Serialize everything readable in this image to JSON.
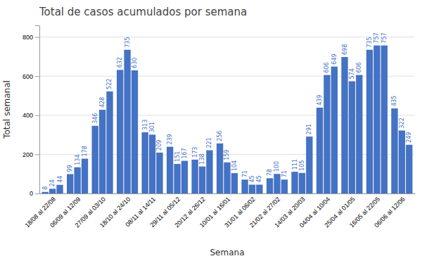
{
  "chart_data": {
    "type": "bar",
    "title": "Total de casos acumulados por semana",
    "xlabel": "Semana",
    "ylabel": "Total semanal",
    "categories": [
      "18/08 al 22/08",
      "06/09 al 12/09",
      "27/09 al 03/10",
      "18/10 al 24/10",
      "08/11 al 14/11",
      "29/11 al 05/12",
      "20/12 al 26/12",
      "10/01 al 16/01",
      "31/01 al 06/02",
      "21/02 al 27/02",
      "14/03 al 20/03",
      "04/04 al 10/04",
      "25/04 al 01/05",
      "16/05 al 22/05",
      "06/06 al 12/06"
    ],
    "values": [
      [
        8,
        24,
        44
      ],
      [
        99,
        134,
        178
      ],
      [
        346,
        428,
        522
      ],
      [
        632,
        735,
        630
      ],
      [
        313,
        301,
        209
      ],
      [
        239,
        151,
        167
      ],
      [
        173,
        138,
        221
      ],
      [
        256,
        159,
        104
      ],
      [
        71,
        45,
        45
      ],
      [
        78,
        100,
        71
      ],
      [
        111,
        105,
        291
      ],
      [
        439,
        606,
        649
      ],
      [
        698,
        574,
        606
      ],
      [
        735,
        757,
        757
      ],
      [
        435,
        322,
        249
      ]
    ],
    "color": "#4472C4",
    "ylim": [
      0,
      860
    ],
    "yticks": [
      0,
      200,
      400,
      600,
      800
    ],
    "grid": true,
    "data_labels": true
  }
}
